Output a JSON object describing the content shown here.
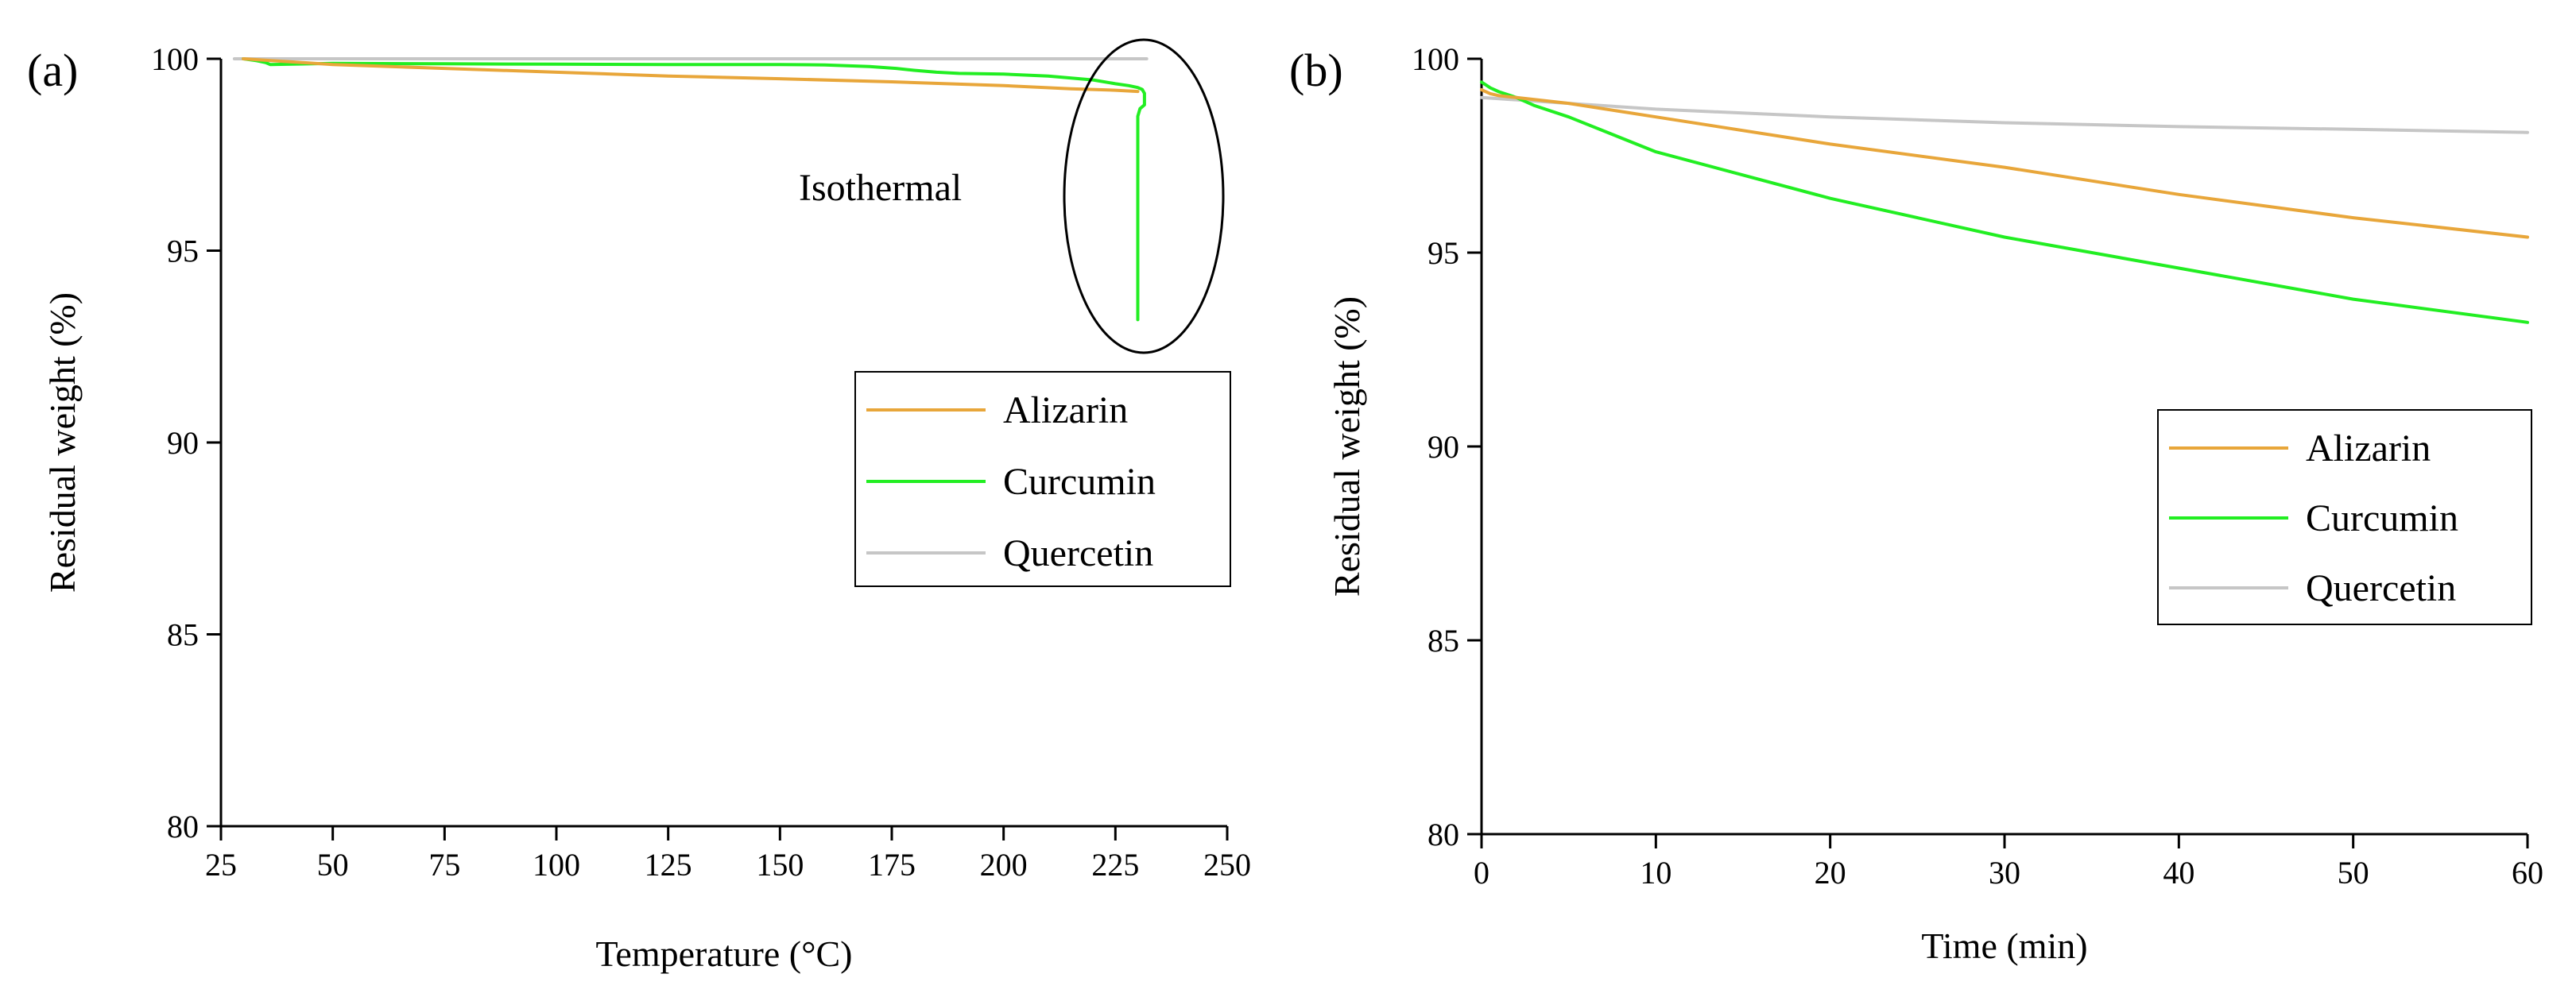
{
  "figure": {
    "panel_a_label": "(a)",
    "panel_b_label": "(b)"
  },
  "colors": {
    "alizarin": "#e8a63a",
    "curcumin": "#22ee22",
    "quercetin": "#c6c6c6",
    "axis": "#000000"
  },
  "chart_data": [
    {
      "type": "line",
      "panel": "(a)",
      "title": "",
      "xlabel": "Temperature (°C)",
      "ylabel": "Residual weight (%)",
      "xlim": [
        25,
        250
      ],
      "ylim": [
        80,
        100
      ],
      "xticks": [
        25,
        50,
        75,
        100,
        125,
        150,
        175,
        200,
        225,
        250
      ],
      "yticks": [
        80,
        85,
        90,
        95,
        100
      ],
      "legend_position": "right",
      "annotation": {
        "text": "Isothermal",
        "marks": "ellipse around curves near 230 °C"
      },
      "series": [
        {
          "name": "Alizarin",
          "color_key": "alizarin",
          "x": [
            30,
            50,
            75,
            100,
            125,
            150,
            175,
            200,
            215,
            225,
            230
          ],
          "y": [
            100.0,
            99.85,
            99.75,
            99.65,
            99.55,
            99.48,
            99.4,
            99.3,
            99.22,
            99.18,
            99.15
          ]
        },
        {
          "name": "Curcumin",
          "color_key": "curcumin",
          "x": [
            30,
            33,
            35,
            36,
            50,
            75,
            100,
            125,
            150,
            160,
            170,
            176,
            180,
            185,
            190,
            200,
            210,
            220,
            225,
            228,
            230,
            231,
            231.5,
            231.5,
            230.5,
            230,
            230
          ],
          "y": [
            100.0,
            99.95,
            99.9,
            99.85,
            99.88,
            99.87,
            99.86,
            99.85,
            99.85,
            99.84,
            99.8,
            99.75,
            99.7,
            99.65,
            99.62,
            99.6,
            99.55,
            99.45,
            99.35,
            99.3,
            99.25,
            99.2,
            99.1,
            98.8,
            98.7,
            98.5,
            93.2
          ]
        },
        {
          "name": "Quercetin",
          "color_key": "quercetin",
          "x": [
            28,
            100,
            175,
            232
          ],
          "y": [
            100.0,
            100.0,
            100.0,
            100.0
          ]
        }
      ]
    },
    {
      "type": "line",
      "panel": "(b)",
      "title": "",
      "xlabel": "Time (min)",
      "ylabel": "Residual weight (%)",
      "xlim": [
        0,
        60
      ],
      "ylim": [
        80,
        100
      ],
      "xticks": [
        0,
        10,
        20,
        30,
        40,
        50,
        60
      ],
      "yticks": [
        80,
        85,
        90,
        95,
        100
      ],
      "legend_position": "right",
      "series": [
        {
          "name": "Alizarin",
          "color_key": "alizarin",
          "x": [
            0,
            0.5,
            1,
            2,
            5,
            10,
            20,
            30,
            40,
            50,
            60
          ],
          "y": [
            99.2,
            99.1,
            99.05,
            99.0,
            98.85,
            98.5,
            97.8,
            97.2,
            96.5,
            95.9,
            95.4
          ]
        },
        {
          "name": "Curcumin",
          "color_key": "curcumin",
          "x": [
            0,
            0.5,
            1,
            2,
            3,
            5,
            10,
            20,
            30,
            40,
            50,
            60
          ],
          "y": [
            99.4,
            99.25,
            99.15,
            99.0,
            98.8,
            98.5,
            97.6,
            96.4,
            95.4,
            94.6,
            93.8,
            93.2
          ]
        },
        {
          "name": "Quercetin",
          "color_key": "quercetin",
          "x": [
            0,
            5,
            10,
            20,
            30,
            40,
            50,
            60
          ],
          "y": [
            99.0,
            98.85,
            98.7,
            98.5,
            98.35,
            98.25,
            98.18,
            98.1
          ]
        }
      ]
    }
  ]
}
